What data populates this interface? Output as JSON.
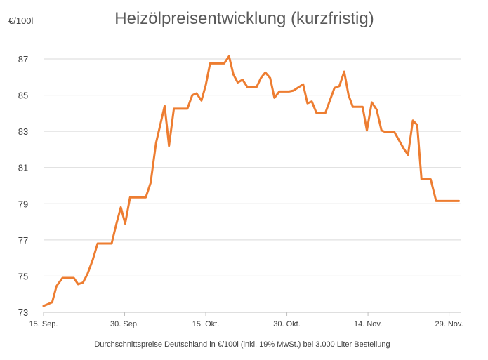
{
  "chart_data": {
    "type": "line",
    "title": "Heizölpreisentwicklung (kurzfristig)",
    "ylabel": "€/100l",
    "caption": "Durchschnittspreise Deutschland in €/100l (inkl. 19% MwSt.) bei 3.000 Liter Bestellung",
    "ylim": [
      73,
      88
    ],
    "yticks": [
      73,
      75,
      77,
      79,
      81,
      83,
      85,
      87
    ],
    "x_ticks": [
      {
        "label": "15. Sep.",
        "x": 0
      },
      {
        "label": "30. Sep.",
        "x": 15
      },
      {
        "label": "15. Okt.",
        "x": 30
      },
      {
        "label": "30. Okt.",
        "x": 45
      },
      {
        "label": "14. Nov.",
        "x": 60
      },
      {
        "label": "29. Nov.",
        "x": 75
      }
    ],
    "xlim": [
      0,
      77
    ],
    "grid": true,
    "series": [
      {
        "color": "#ed7d31",
        "x": [
          0,
          1.6,
          2.4,
          3.5,
          4.6,
          5.6,
          6.4,
          7.3,
          8.1,
          9.1,
          10.0,
          10.9,
          12.6,
          13.4,
          14.3,
          15.1,
          16.0,
          16.9,
          17.9,
          18.9,
          19.8,
          20.8,
          22.4,
          23.2,
          24.1,
          25.0,
          26.6,
          27.5,
          28.3,
          29.2,
          30.0,
          30.8,
          31.7,
          33.4,
          34.3,
          35.1,
          35.9,
          36.8,
          37.7,
          38.5,
          39.4,
          40.2,
          41.0,
          41.9,
          42.7,
          43.6,
          44.5,
          45.4,
          46.2,
          48.0,
          48.8,
          49.6,
          50.5,
          51.4,
          52.1,
          53.8,
          54.7,
          55.6,
          56.4,
          57.2,
          58.1,
          59.0,
          59.8,
          60.7,
          61.6,
          62.5,
          63.3,
          64.0,
          64.9,
          66.6,
          67.4,
          68.3,
          69.1,
          69.9,
          70.8,
          71.6,
          72.6,
          73.4,
          74.3,
          75.0,
          75.9,
          76.8,
          77.7
        ],
        "y": [
          73.35,
          73.55,
          74.45,
          74.9,
          74.9,
          74.9,
          74.55,
          74.65,
          75.1,
          75.9,
          76.8,
          76.8,
          76.8,
          77.8,
          78.8,
          77.9,
          79.35,
          79.35,
          79.35,
          79.35,
          80.15,
          82.35,
          84.4,
          82.2,
          84.25,
          84.25,
          84.25,
          85.0,
          85.1,
          84.7,
          85.55,
          86.75,
          86.75,
          86.75,
          87.15,
          86.15,
          85.7,
          85.85,
          85.45,
          85.45,
          85.45,
          85.95,
          86.25,
          85.95,
          84.85,
          85.2,
          85.2,
          85.2,
          85.25,
          85.6,
          84.55,
          84.65,
          84.0,
          84.0,
          84.0,
          85.4,
          85.5,
          86.3,
          85.0,
          84.35,
          84.35,
          84.35,
          83.05,
          84.6,
          84.2,
          83.05,
          82.95,
          82.95,
          82.95,
          82.05,
          81.7,
          83.6,
          83.35,
          80.35,
          80.35,
          80.35,
          79.15,
          79.15,
          79.15,
          79.15,
          79.15,
          79.15,
          79.15
        ]
      }
    ]
  }
}
